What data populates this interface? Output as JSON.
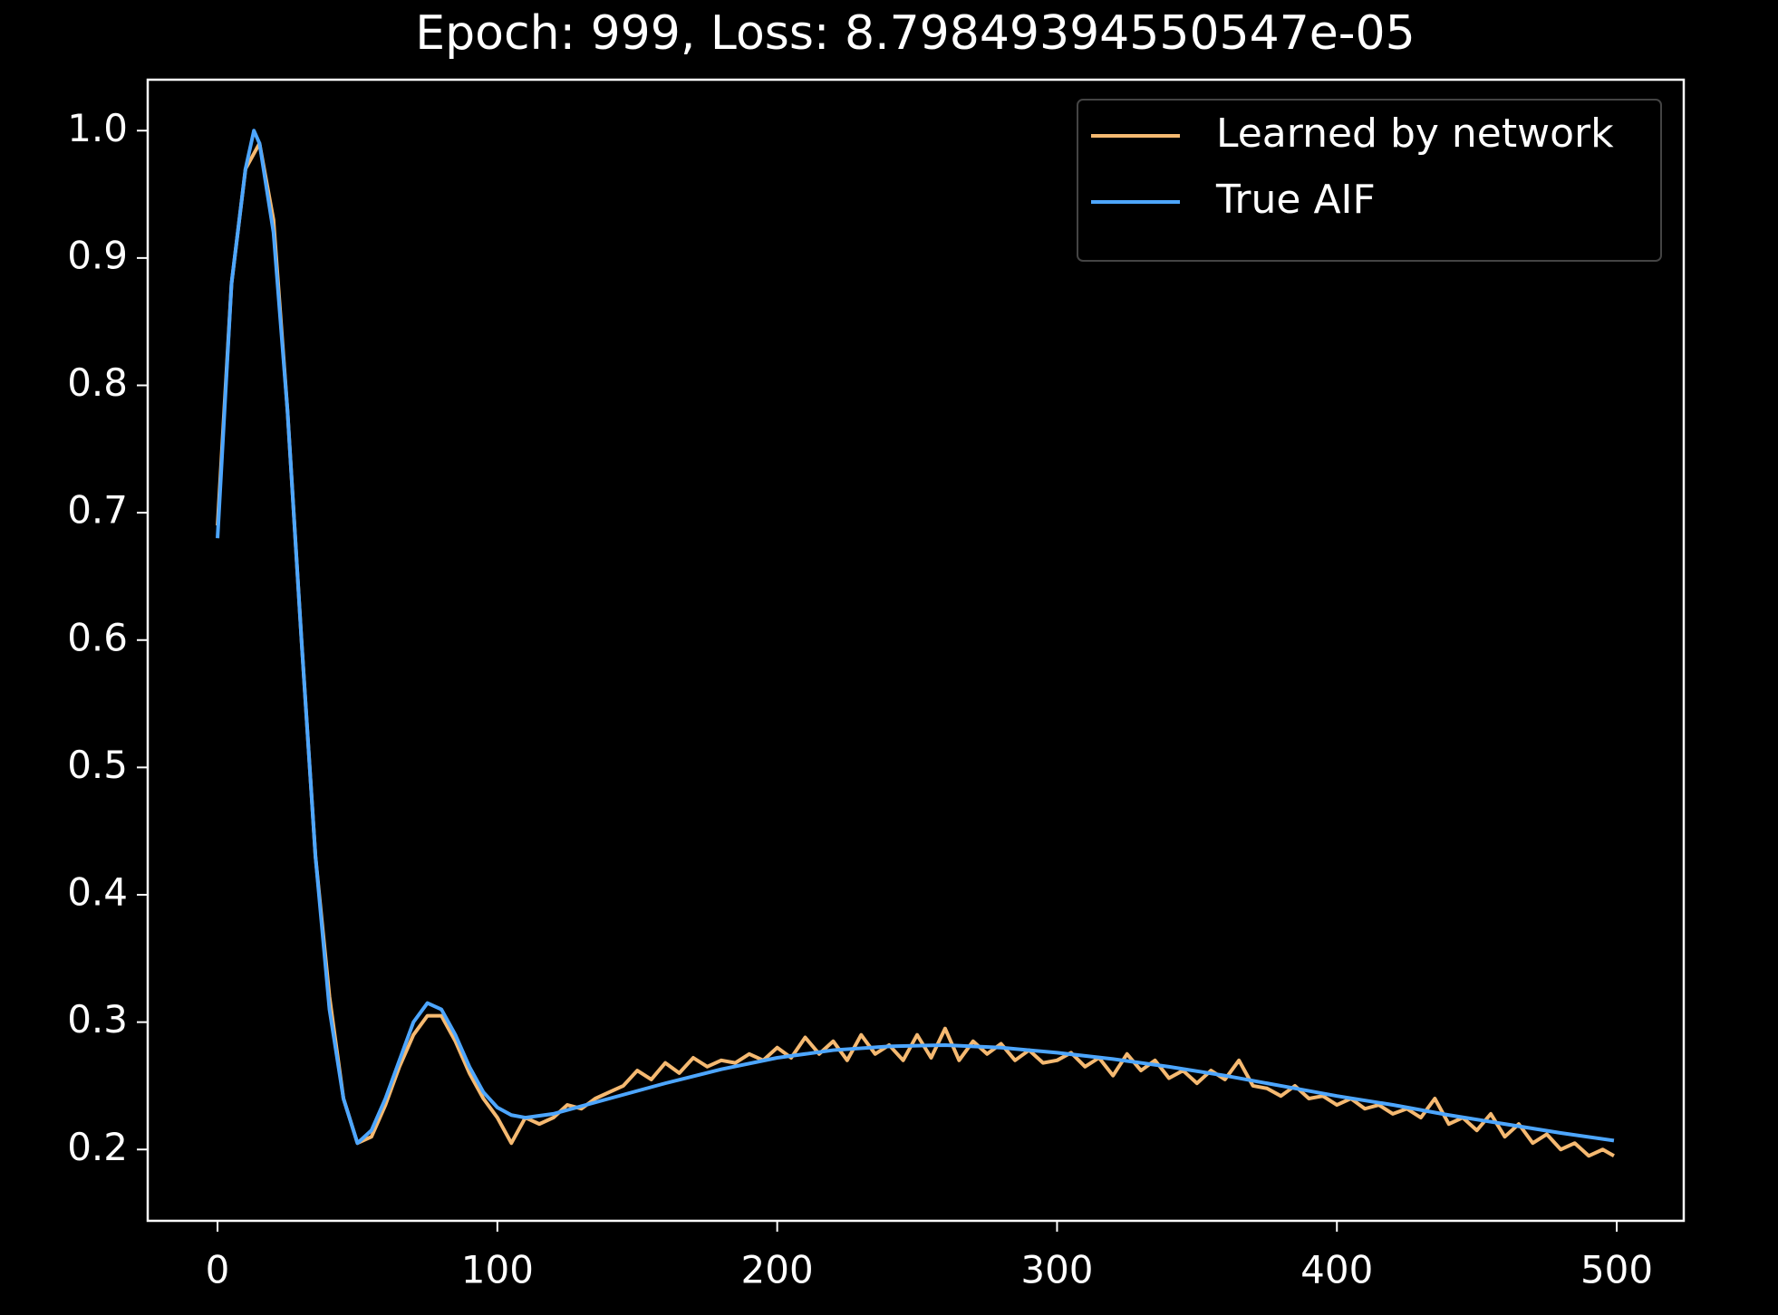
{
  "chart_data": {
    "type": "line",
    "title": "Epoch: 999, Loss: 8.79849394550547e-05",
    "xlim": [
      -24.95,
      523.95
    ],
    "ylim": [
      0.144,
      1.04
    ],
    "xticks": [
      0,
      100,
      200,
      300,
      400,
      500
    ],
    "yticks": [
      0.2,
      0.3,
      0.4,
      0.5,
      0.6,
      0.7,
      0.8,
      0.9,
      {
        "value": 1,
        "label": "1.0"
      }
    ],
    "legend": "upper right",
    "series": [
      {
        "name": "Learned by network",
        "color": "#f5b971",
        "x": [
          0,
          5,
          10,
          15,
          20,
          25,
          30,
          35,
          40,
          45,
          50,
          55,
          60,
          65,
          70,
          75,
          80,
          85,
          90,
          95,
          100,
          105,
          110,
          115,
          120,
          125,
          130,
          135,
          140,
          145,
          150,
          155,
          160,
          165,
          170,
          175,
          180,
          185,
          190,
          195,
          200,
          205,
          210,
          215,
          220,
          225,
          230,
          235,
          240,
          245,
          250,
          255,
          260,
          265,
          270,
          275,
          280,
          285,
          290,
          295,
          300,
          305,
          310,
          315,
          320,
          325,
          330,
          335,
          340,
          345,
          350,
          355,
          360,
          365,
          370,
          375,
          380,
          385,
          390,
          395,
          400,
          405,
          410,
          415,
          420,
          425,
          430,
          435,
          440,
          445,
          450,
          455,
          460,
          465,
          470,
          475,
          480,
          485,
          490,
          495,
          499
        ],
        "values": [
          0.69,
          0.88,
          0.97,
          0.99,
          0.93,
          0.78,
          0.6,
          0.43,
          0.32,
          0.24,
          0.205,
          0.21,
          0.235,
          0.265,
          0.29,
          0.305,
          0.305,
          0.285,
          0.26,
          0.24,
          0.225,
          0.205,
          0.225,
          0.22,
          0.225,
          0.235,
          0.232,
          0.24,
          0.245,
          0.25,
          0.262,
          0.255,
          0.268,
          0.26,
          0.272,
          0.265,
          0.27,
          0.268,
          0.275,
          0.27,
          0.28,
          0.272,
          0.288,
          0.275,
          0.285,
          0.27,
          0.29,
          0.275,
          0.282,
          0.27,
          0.29,
          0.272,
          0.295,
          0.27,
          0.285,
          0.275,
          0.283,
          0.27,
          0.278,
          0.268,
          0.27,
          0.276,
          0.265,
          0.272,
          0.258,
          0.275,
          0.262,
          0.27,
          0.256,
          0.262,
          0.252,
          0.262,
          0.255,
          0.27,
          0.25,
          0.248,
          0.242,
          0.25,
          0.24,
          0.242,
          0.235,
          0.24,
          0.232,
          0.235,
          0.228,
          0.232,
          0.225,
          0.24,
          0.22,
          0.225,
          0.215,
          0.228,
          0.21,
          0.22,
          0.205,
          0.212,
          0.2,
          0.205,
          0.195,
          0.2,
          0.195
        ]
      },
      {
        "name": "True AIF",
        "color": "#4da6ff",
        "x": [
          0,
          5,
          10,
          13,
          15,
          20,
          25,
          30,
          35,
          40,
          45,
          50,
          55,
          60,
          65,
          70,
          75,
          80,
          85,
          90,
          95,
          100,
          105,
          110,
          120,
          140,
          160,
          180,
          200,
          220,
          240,
          260,
          280,
          300,
          320,
          340,
          360,
          380,
          400,
          420,
          440,
          460,
          480,
          499
        ],
        "values": [
          0.68,
          0.88,
          0.97,
          1.0,
          0.99,
          0.92,
          0.78,
          0.6,
          0.43,
          0.31,
          0.24,
          0.205,
          0.215,
          0.24,
          0.27,
          0.3,
          0.315,
          0.31,
          0.29,
          0.265,
          0.245,
          0.233,
          0.227,
          0.225,
          0.228,
          0.24,
          0.252,
          0.263,
          0.272,
          0.278,
          0.281,
          0.282,
          0.28,
          0.276,
          0.271,
          0.265,
          0.258,
          0.25,
          0.242,
          0.235,
          0.227,
          0.22,
          0.213,
          0.207
        ]
      }
    ]
  }
}
